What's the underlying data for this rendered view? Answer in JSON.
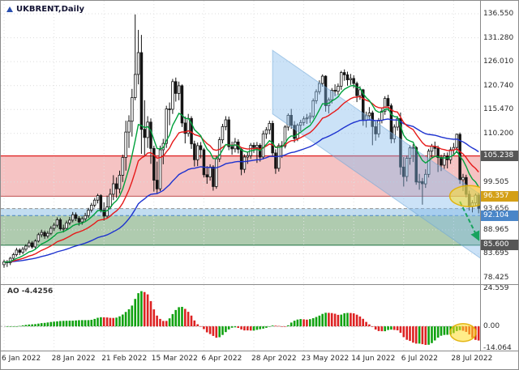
{
  "window": {
    "bg": "#ffffff",
    "border_color": "#8a8a8a"
  },
  "header": {
    "symbol_label": "UKBRENT,Daily",
    "marker_icon": "symbol-marker",
    "marker_color": "#2a4fae"
  },
  "price_axis": {
    "ticks": [
      {
        "label": "136.550",
        "value": 136.55
      },
      {
        "label": "131.280",
        "value": 131.28
      },
      {
        "label": "126.010",
        "value": 126.01
      },
      {
        "label": "120.740",
        "value": 120.74
      },
      {
        "label": "115.470",
        "value": 115.47
      },
      {
        "label": "110.200",
        "value": 110.2
      },
      {
        "label": "99.505",
        "value": 99.505
      },
      {
        "label": "88.965",
        "value": 88.965
      },
      {
        "label": "83.695",
        "value": 83.695
      },
      {
        "label": "78.425",
        "value": 78.425
      }
    ],
    "badges": [
      {
        "label": "105.238",
        "value": 105.238,
        "bg": "#565656",
        "fg": "#ffffff"
      },
      {
        "label": "96.357",
        "value": 96.357,
        "bg": "#d4a017",
        "fg": "#ffffff"
      },
      {
        "label": "92.104",
        "value": 92.104,
        "bg": "#4a86c8",
        "fg": "#ffffff"
      },
      {
        "label": "85.600",
        "value": 85.6,
        "bg": "#565656",
        "fg": "#ffffff"
      }
    ],
    "extra_labels": [
      {
        "label": "93.656",
        "value": 93.656
      }
    ]
  },
  "time_axis": {
    "labels": [
      "6 Jan 2022",
      "28 Jan 2022",
      "21 Feb 2022",
      "15 Mar 2022",
      "6 Apr 2022",
      "28 Apr 2022",
      "23 May 2022",
      "14 Jun 2022",
      "6 Jul 2022",
      "28 Jul 2022"
    ],
    "indices": [
      0,
      16,
      32,
      48,
      64,
      80,
      96,
      112,
      128,
      144
    ]
  },
  "ao_panel": {
    "label": "AO -4.4256",
    "axis": [
      {
        "label": "24.559",
        "value": 24.559
      },
      {
        "label": "0.00",
        "value": 0
      },
      {
        "label": "-14.064",
        "value": -14.064
      }
    ]
  },
  "chart_data": {
    "type": "candlestick",
    "title": "UKBRENT,Daily",
    "symbol": "UKBRENT",
    "timeframe": "Daily",
    "x_axis": {
      "labels": [
        "6 Jan 2022",
        "28 Jan 2022",
        "21 Feb 2022",
        "15 Mar 2022",
        "6 Apr 2022",
        "28 Apr 2022",
        "23 May 2022",
        "14 Jun 2022",
        "6 Jul 2022",
        "28 Jul 2022"
      ],
      "indices": [
        0,
        16,
        32,
        48,
        64,
        80,
        96,
        112,
        128,
        144
      ]
    },
    "y_axis": {
      "visible_range": [
        77.0,
        139.4
      ],
      "ticks": [
        136.55,
        131.28,
        126.01,
        120.74,
        115.47,
        110.2,
        99.505,
        88.965,
        83.695,
        78.425
      ],
      "grid": true
    },
    "candles_ohlc": [
      [
        81.3,
        82.4,
        80.6,
        81.9
      ],
      [
        81.9,
        82.3,
        80.8,
        81.7
      ],
      [
        81.7,
        83.0,
        81.2,
        82.7
      ],
      [
        82.7,
        83.9,
        82.2,
        83.5
      ],
      [
        83.5,
        85.0,
        83.1,
        84.5
      ],
      [
        84.5,
        84.9,
        83.4,
        84.0
      ],
      [
        84.0,
        85.2,
        83.6,
        84.7
      ],
      [
        84.7,
        85.8,
        84.2,
        85.4
      ],
      [
        85.4,
        86.7,
        85.0,
        86.1
      ],
      [
        86.1,
        86.5,
        84.8,
        85.2
      ],
      [
        85.2,
        86.9,
        84.9,
        86.5
      ],
      [
        86.5,
        88.3,
        86.2,
        87.9
      ],
      [
        87.9,
        89.0,
        87.3,
        88.4
      ],
      [
        88.4,
        88.8,
        87.0,
        87.6
      ],
      [
        87.6,
        88.7,
        87.1,
        88.2
      ],
      [
        88.2,
        89.8,
        87.8,
        89.3
      ],
      [
        89.3,
        90.5,
        88.7,
        90.0
      ],
      [
        90.0,
        91.7,
        89.5,
        91.2
      ],
      [
        91.2,
        91.6,
        88.8,
        89.2
      ],
      [
        89.2,
        90.1,
        88.4,
        89.3
      ],
      [
        89.3,
        91.0,
        88.9,
        90.5
      ],
      [
        90.5,
        91.8,
        90.0,
        91.1
      ],
      [
        91.1,
        92.9,
        90.6,
        92.3
      ],
      [
        92.3,
        92.8,
        90.9,
        91.5
      ],
      [
        91.5,
        92.0,
        89.9,
        90.7
      ],
      [
        90.7,
        91.9,
        90.1,
        91.4
      ],
      [
        91.4,
        92.7,
        90.8,
        92.1
      ],
      [
        92.1,
        93.8,
        91.6,
        93.3
      ],
      [
        93.3,
        94.9,
        92.8,
        94.4
      ],
      [
        94.4,
        96.0,
        93.9,
        95.5
      ],
      [
        95.5,
        96.9,
        94.8,
        96.5
      ],
      [
        96.5,
        96.8,
        92.8,
        93.3
      ],
      [
        93.3,
        95.0,
        91.0,
        92.0
      ],
      [
        92.0,
        96.5,
        91.5,
        94.0
      ],
      [
        94.0,
        98.0,
        93.5,
        96.8
      ],
      [
        96.8,
        101.0,
        95.5,
        99.1
      ],
      [
        99.1,
        100.5,
        96.0,
        98.0
      ],
      [
        98.0,
        102.0,
        97.0,
        101.0
      ],
      [
        101.0,
        105.5,
        99.5,
        104.9
      ],
      [
        104.9,
        113.0,
        102.0,
        110.5
      ],
      [
        110.5,
        114.2,
        107.0,
        112.9
      ],
      [
        112.9,
        120.0,
        109.5,
        118.1
      ],
      [
        118.1,
        136.4,
        117.5,
        123.2
      ],
      [
        123.2,
        133.0,
        121.0,
        128.0
      ],
      [
        128.0,
        131.9,
        105.7,
        111.1
      ],
      [
        111.1,
        117.5,
        105.1,
        109.3
      ],
      [
        109.3,
        114.0,
        107.0,
        112.7
      ],
      [
        112.7,
        113.5,
        103.5,
        106.9
      ],
      [
        106.9,
        107.5,
        97.4,
        99.9
      ],
      [
        99.9,
        104.0,
        97.0,
        98.0
      ],
      [
        98.0,
        107.5,
        97.5,
        106.6
      ],
      [
        106.6,
        109.0,
        103.4,
        108.0
      ],
      [
        108.0,
        116.3,
        107.0,
        115.6
      ],
      [
        115.6,
        117.0,
        112.0,
        115.5
      ],
      [
        115.5,
        122.2,
        114.5,
        121.6
      ],
      [
        121.6,
        122.5,
        117.2,
        119.0
      ],
      [
        119.0,
        121.6,
        117.5,
        120.7
      ],
      [
        120.7,
        121.0,
        111.6,
        112.5
      ],
      [
        112.5,
        113.9,
        108.0,
        110.2
      ],
      [
        110.2,
        114.5,
        109.5,
        113.5
      ],
      [
        113.5,
        114.0,
        106.8,
        107.9
      ],
      [
        107.9,
        108.6,
        102.9,
        104.4
      ],
      [
        104.4,
        108.2,
        103.0,
        107.5
      ],
      [
        107.5,
        108.3,
        104.7,
        106.6
      ],
      [
        106.6,
        107.0,
        100.5,
        101.1
      ],
      [
        101.1,
        103.0,
        99.1,
        100.6
      ],
      [
        100.6,
        103.4,
        99.8,
        102.8
      ],
      [
        102.8,
        103.2,
        97.6,
        98.5
      ],
      [
        98.5,
        105.2,
        98.0,
        104.6
      ],
      [
        104.6,
        109.4,
        103.9,
        108.8
      ],
      [
        108.8,
        112.3,
        108.0,
        111.7
      ],
      [
        111.7,
        114.0,
        110.9,
        113.2
      ],
      [
        113.2,
        113.9,
        106.5,
        107.3
      ],
      [
        107.3,
        108.4,
        105.5,
        106.8
      ],
      [
        106.8,
        109.2,
        106.0,
        108.3
      ],
      [
        108.3,
        108.9,
        105.8,
        106.7
      ],
      [
        106.7,
        107.1,
        101.0,
        102.3
      ],
      [
        102.3,
        105.6,
        101.5,
        105.0
      ],
      [
        105.0,
        106.1,
        103.5,
        105.3
      ],
      [
        105.3,
        108.1,
        104.6,
        107.6
      ],
      [
        107.6,
        108.2,
        105.9,
        107.1
      ],
      [
        107.1,
        108.3,
        103.7,
        107.6
      ],
      [
        107.6,
        108.0,
        104.0,
        105.0
      ],
      [
        105.0,
        110.8,
        104.5,
        110.1
      ],
      [
        110.1,
        111.6,
        109.0,
        111.0
      ],
      [
        111.0,
        113.0,
        110.0,
        112.4
      ],
      [
        112.4,
        113.0,
        105.0,
        105.9
      ],
      [
        105.9,
        106.7,
        101.3,
        102.5
      ],
      [
        102.5,
        108.0,
        101.8,
        107.5
      ],
      [
        107.5,
        108.5,
        104.8,
        107.4
      ],
      [
        107.4,
        112.0,
        106.9,
        111.6
      ],
      [
        111.6,
        114.6,
        110.8,
        114.2
      ],
      [
        114.2,
        115.6,
        111.2,
        112.0
      ],
      [
        112.0,
        112.9,
        108.2,
        109.1
      ],
      [
        109.1,
        112.4,
        108.5,
        112.0
      ],
      [
        112.0,
        113.2,
        110.7,
        112.6
      ],
      [
        112.6,
        114.0,
        111.9,
        113.4
      ],
      [
        113.4,
        114.5,
        112.3,
        113.6
      ],
      [
        113.6,
        114.8,
        112.5,
        114.0
      ],
      [
        114.0,
        117.9,
        113.5,
        117.4
      ],
      [
        117.4,
        119.9,
        116.7,
        119.4
      ],
      [
        119.4,
        121.9,
        118.8,
        121.2
      ],
      [
        121.2,
        123.2,
        120.5,
        122.8
      ],
      [
        122.8,
        123.0,
        115.0,
        116.3
      ],
      [
        116.3,
        118.1,
        114.6,
        117.6
      ],
      [
        117.6,
        120.2,
        116.8,
        119.7
      ],
      [
        119.7,
        121.0,
        118.4,
        119.5
      ],
      [
        119.5,
        121.2,
        118.7,
        120.6
      ],
      [
        120.6,
        124.0,
        119.8,
        123.6
      ],
      [
        123.6,
        124.3,
        121.8,
        123.1
      ],
      [
        123.1,
        123.8,
        120.7,
        122.0
      ],
      [
        122.0,
        123.3,
        120.9,
        122.3
      ],
      [
        122.3,
        123.0,
        120.2,
        121.2
      ],
      [
        121.2,
        121.6,
        117.1,
        118.5
      ],
      [
        118.5,
        120.6,
        117.6,
        119.8
      ],
      [
        119.8,
        120.0,
        111.9,
        113.1
      ],
      [
        113.1,
        115.0,
        111.5,
        114.1
      ],
      [
        114.1,
        116.0,
        113.3,
        114.7
      ],
      [
        114.7,
        115.2,
        107.6,
        111.7
      ],
      [
        111.7,
        112.8,
        108.6,
        110.1
      ],
      [
        110.1,
        113.6,
        109.3,
        113.1
      ],
      [
        113.1,
        115.7,
        112.4,
        115.1
      ],
      [
        115.1,
        118.4,
        114.3,
        117.9
      ],
      [
        117.9,
        118.7,
        115.2,
        116.3
      ],
      [
        116.3,
        116.8,
        108.0,
        109.0
      ],
      [
        109.0,
        112.2,
        108.1,
        111.6
      ],
      [
        111.6,
        114.0,
        110.8,
        113.5
      ],
      [
        113.5,
        114.8,
        101.1,
        102.8
      ],
      [
        102.8,
        105.0,
        98.5,
        100.7
      ],
      [
        100.7,
        105.3,
        99.6,
        104.7
      ],
      [
        104.7,
        107.6,
        103.3,
        107.0
      ],
      [
        107.0,
        107.8,
        103.9,
        107.1
      ],
      [
        107.1,
        107.4,
        98.9,
        99.5
      ],
      [
        99.5,
        101.3,
        97.8,
        99.6
      ],
      [
        99.6,
        100.4,
        94.5,
        99.1
      ],
      [
        99.1,
        102.3,
        98.2,
        101.2
      ],
      [
        101.2,
        106.8,
        100.5,
        106.3
      ],
      [
        106.3,
        107.9,
        104.8,
        107.4
      ],
      [
        107.4,
        108.4,
        105.4,
        106.9
      ],
      [
        106.9,
        107.5,
        101.7,
        104.9
      ],
      [
        104.9,
        105.5,
        101.9,
        103.2
      ],
      [
        103.2,
        105.9,
        102.4,
        105.2
      ],
      [
        105.2,
        106.0,
        102.5,
        104.4
      ],
      [
        104.4,
        107.2,
        103.5,
        106.6
      ],
      [
        106.6,
        108.1,
        105.3,
        107.1
      ],
      [
        107.1,
        110.2,
        105.9,
        110.0
      ],
      [
        110.0,
        110.4,
        99.1,
        100.0
      ],
      [
        100.0,
        101.3,
        97.5,
        100.5
      ],
      [
        100.5,
        101.1,
        96.1,
        96.8
      ],
      [
        96.8,
        97.6,
        93.2,
        94.1
      ],
      [
        94.1,
        95.5,
        92.8,
        94.9
      ],
      [
        94.9,
        97.0,
        94.2,
        96.6
      ],
      [
        96.6,
        97.1,
        92.6,
        93.7
      ]
    ],
    "overlays": {
      "zones": [
        {
          "name": "resistance-zone",
          "from": 96.357,
          "to": 105.238,
          "color": "rgba(232,112,112,0.42)"
        },
        {
          "name": "interim-zone",
          "from": 92.104,
          "to": 93.656,
          "color": "rgba(120,180,225,0.45)"
        },
        {
          "name": "support-zone",
          "from": 85.6,
          "to": 92.104,
          "color": "rgba(96,152,96,0.5)"
        }
      ],
      "levels": [
        {
          "value": 105.238,
          "color": "#e02828",
          "style": "solid",
          "width": 1.4
        },
        {
          "value": 96.357,
          "color": "#c05050",
          "style": "solid",
          "width": 1
        },
        {
          "value": 93.656,
          "color": "#909090",
          "style": "dashed",
          "width": 1
        },
        {
          "value": 92.104,
          "color": "#4a86c8",
          "style": "dashed",
          "width": 1
        },
        {
          "value": 85.6,
          "color": "#2f7d4e",
          "style": "solid",
          "width": 1.2
        }
      ],
      "channel": {
        "name": "descending-channel",
        "x1_index": 86,
        "p1_top": 128.5,
        "x2_index": 153,
        "p2_top": 96.5,
        "width_price": 14,
        "fill": "rgba(132,186,235,0.42)",
        "stroke": "rgba(110,165,215,0.55)"
      },
      "moving_averages": [
        {
          "name": "ma-slow",
          "period": 55,
          "color": "#1d32cf"
        },
        {
          "name": "ma-mid",
          "period": 21,
          "color": "#e61919"
        },
        {
          "name": "ma-fast",
          "period": 10,
          "color": "#00a13c"
        }
      ],
      "arrow": {
        "name": "projection-arrow",
        "from_index": 146,
        "from_price": 95.2,
        "to_index": 152,
        "to_price": 86.8,
        "color": "#18a35e"
      },
      "highlight_ellipses": [
        {
          "name": "price-highlight-ellipse",
          "panel": "price",
          "index": 149,
          "price": 96.4,
          "rx": 24,
          "ry": 13,
          "fill": "rgba(255,220,40,0.55)",
          "stroke": "rgba(225,175,0,0.9)"
        },
        {
          "name": "ao-highlight-ellipse",
          "panel": "ao",
          "index": 147,
          "value": -4.0,
          "rx": 16,
          "ry": 11,
          "fill": "rgba(255,220,40,0.55)",
          "stroke": "rgba(225,175,0,0.9)"
        }
      ]
    },
    "oscillator": {
      "type": "awesome-oscillator",
      "label": "AO -4.4256",
      "value": -4.4256,
      "fast_period": 5,
      "slow_period": 34,
      "range": [
        -14.064,
        24.559
      ],
      "up_color": "#11a211",
      "down_color": "#dd2222"
    }
  }
}
